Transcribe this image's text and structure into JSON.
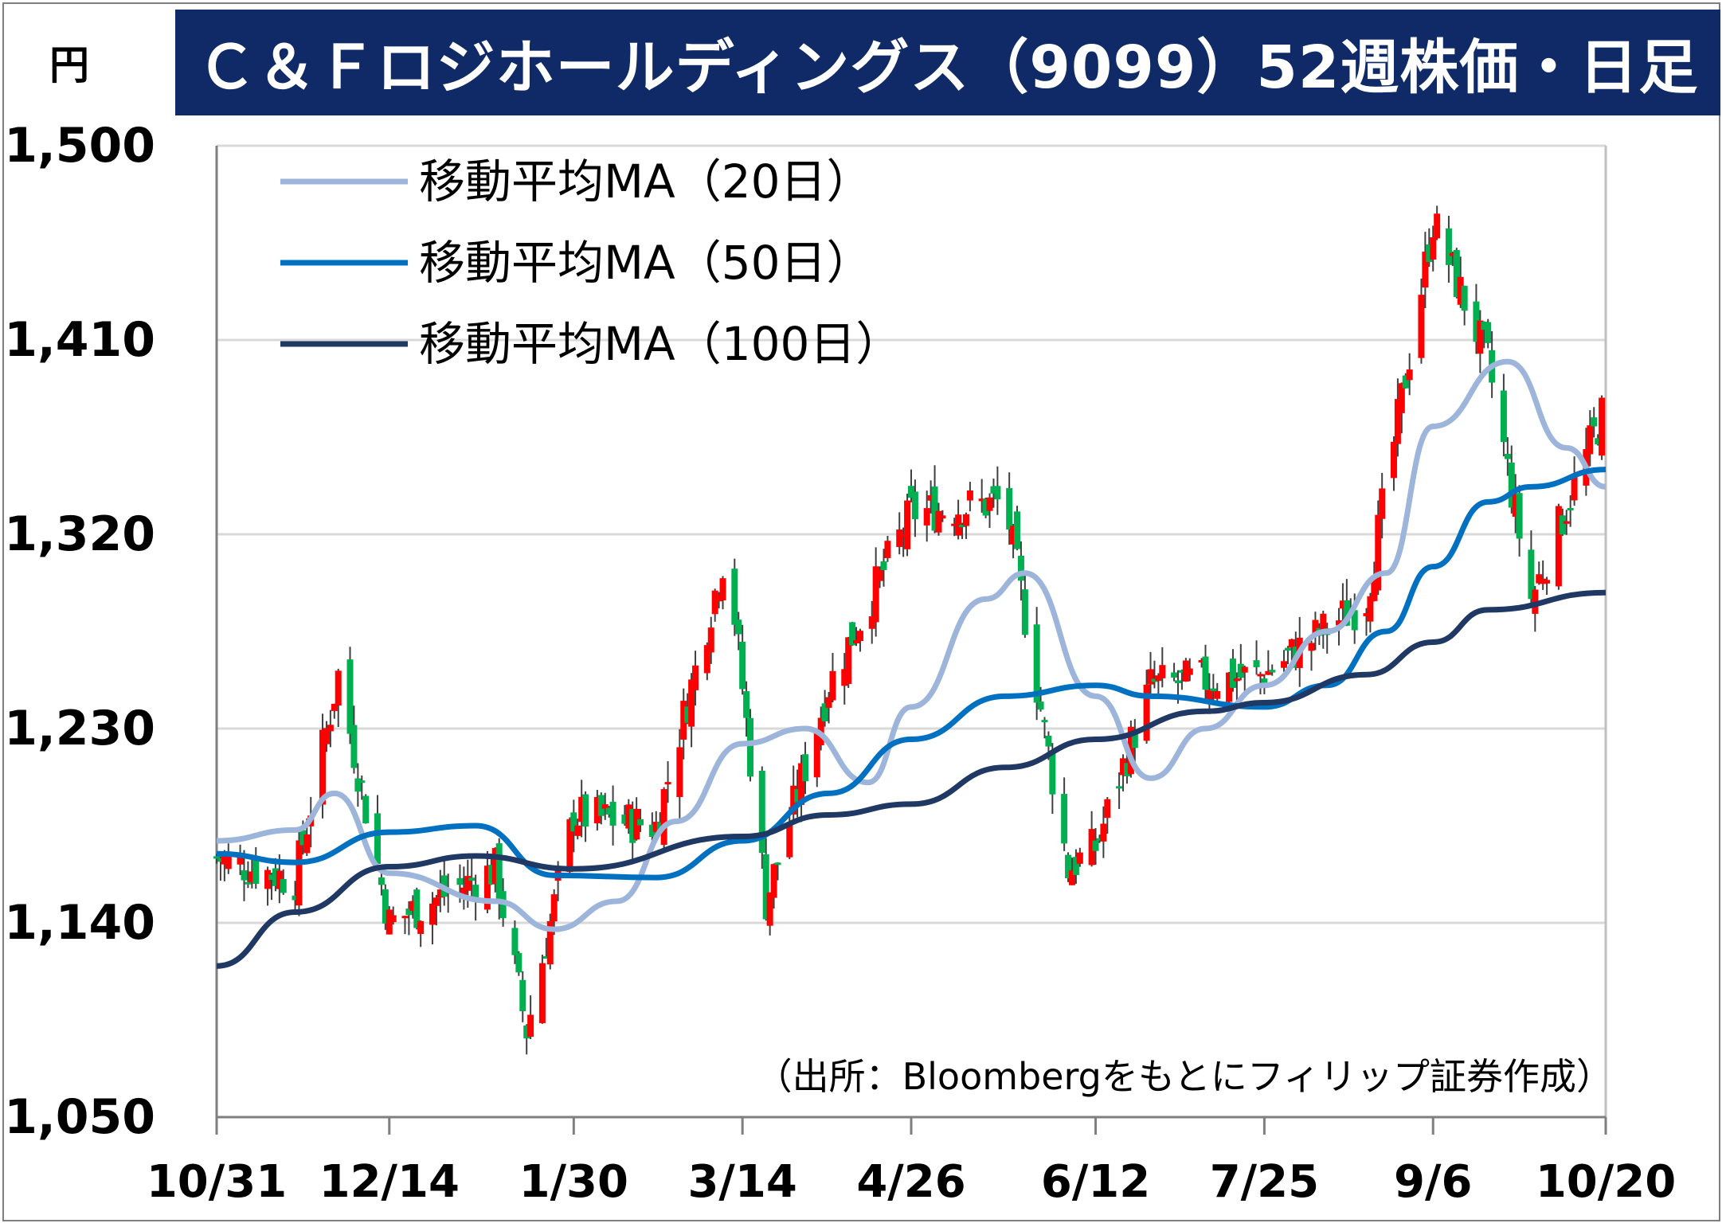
{
  "chart_data": {
    "type": "candlestick",
    "title": "Ｃ＆Ｆロジホールディングス（9099）52週株価・日足",
    "unit": "円",
    "source": "（出所：Bloombergをもとにフィリップ証券作成）",
    "ylim": [
      1050,
      1500
    ],
    "y_ticks": [
      "1,500",
      "1,410",
      "1,320",
      "1,230",
      "1,140",
      "1,050"
    ],
    "x_ticks": [
      "10/31",
      "12/14",
      "1/30",
      "3/14",
      "4/26",
      "6/12",
      "7/25",
      "9/6",
      "10/20"
    ],
    "grid": "horizontal",
    "legend_position": "top-left",
    "up_color": "#ff0000",
    "down_color": "#00b050",
    "ohlc_anchors": [
      {
        "x": "10/31",
        "close": 1170
      },
      {
        "x": "11/20",
        "close": 1160
      },
      {
        "x": "12/01",
        "close": 1255
      },
      {
        "x": "12/14",
        "close": 1140
      },
      {
        "x": "1/10",
        "close": 1165
      },
      {
        "x": "1/18",
        "close": 1090
      },
      {
        "x": "1/30",
        "close": 1190
      },
      {
        "x": "2/20",
        "close": 1185
      },
      {
        "x": "3/10",
        "close": 1315
      },
      {
        "x": "3/20",
        "close": 1150
      },
      {
        "x": "4/05",
        "close": 1250
      },
      {
        "x": "4/26",
        "close": 1330
      },
      {
        "x": "5/20",
        "close": 1335
      },
      {
        "x": "6/05",
        "close": 1165
      },
      {
        "x": "6/12",
        "close": 1175
      },
      {
        "x": "6/26",
        "close": 1250
      },
      {
        "x": "7/25",
        "close": 1255
      },
      {
        "x": "8/20",
        "close": 1290
      },
      {
        "x": "9/06",
        "close": 1465
      },
      {
        "x": "9/20",
        "close": 1400
      },
      {
        "x": "10/01",
        "close": 1290
      },
      {
        "x": "10/20",
        "close": 1380
      }
    ],
    "series": [
      {
        "name": "移動平均MA（20日）",
        "color": "#9db5da",
        "points": [
          [
            "10/31",
            1178
          ],
          [
            "11/20",
            1183
          ],
          [
            "11/30",
            1200
          ],
          [
            "12/14",
            1163
          ],
          [
            "1/10",
            1150
          ],
          [
            "1/25",
            1137
          ],
          [
            "2/10",
            1150
          ],
          [
            "2/25",
            1187
          ],
          [
            "3/14",
            1223
          ],
          [
            "3/30",
            1230
          ],
          [
            "4/15",
            1205
          ],
          [
            "4/26",
            1240
          ],
          [
            "5/15",
            1290
          ],
          [
            "5/25",
            1302
          ],
          [
            "6/12",
            1245
          ],
          [
            "6/26",
            1207
          ],
          [
            "7/10",
            1230
          ],
          [
            "7/25",
            1250
          ],
          [
            "8/10",
            1275
          ],
          [
            "8/25",
            1302
          ],
          [
            "9/06",
            1370
          ],
          [
            "9/25",
            1400
          ],
          [
            "10/10",
            1360
          ],
          [
            "10/20",
            1342
          ]
        ]
      },
      {
        "name": "移動平均MA（50日）",
        "color": "#0070c0",
        "points": [
          [
            "10/31",
            1172
          ],
          [
            "11/20",
            1168
          ],
          [
            "12/14",
            1182
          ],
          [
            "1/05",
            1185
          ],
          [
            "1/25",
            1162
          ],
          [
            "2/20",
            1161
          ],
          [
            "3/14",
            1178
          ],
          [
            "4/05",
            1200
          ],
          [
            "4/26",
            1225
          ],
          [
            "5/20",
            1245
          ],
          [
            "6/12",
            1250
          ],
          [
            "6/26",
            1245
          ],
          [
            "7/25",
            1240
          ],
          [
            "8/10",
            1250
          ],
          [
            "8/25",
            1275
          ],
          [
            "9/06",
            1305
          ],
          [
            "9/20",
            1335
          ],
          [
            "10/01",
            1342
          ],
          [
            "10/20",
            1350
          ]
        ]
      },
      {
        "name": "移動平均MA（100日）",
        "color": "#1f3864",
        "points": [
          [
            "10/31",
            1120
          ],
          [
            "11/20",
            1145
          ],
          [
            "12/14",
            1166
          ],
          [
            "1/05",
            1171
          ],
          [
            "1/30",
            1165
          ],
          [
            "3/14",
            1180
          ],
          [
            "4/05",
            1190
          ],
          [
            "4/26",
            1195
          ],
          [
            "5/20",
            1212
          ],
          [
            "6/12",
            1225
          ],
          [
            "7/10",
            1238
          ],
          [
            "7/25",
            1242
          ],
          [
            "8/20",
            1255
          ],
          [
            "9/06",
            1270
          ],
          [
            "9/20",
            1285
          ],
          [
            "10/20",
            1293
          ]
        ]
      }
    ]
  }
}
